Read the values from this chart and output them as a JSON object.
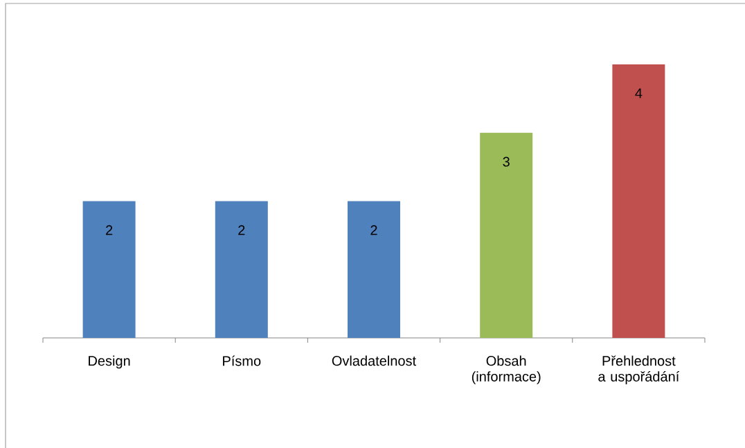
{
  "chart_data": {
    "type": "bar",
    "categories": [
      "Design",
      "Písmo",
      "Ovladatelnost",
      "Obsah (informace)",
      "Přehlednost a uspořádání"
    ],
    "values": [
      2,
      2,
      2,
      3,
      4
    ],
    "colors": [
      "#4f81bd",
      "#4f81bd",
      "#4f81bd",
      "#9bbb59",
      "#c0504d"
    ],
    "ylim": [
      0,
      4
    ],
    "data_labels": true,
    "tick_labels": "x"
  }
}
